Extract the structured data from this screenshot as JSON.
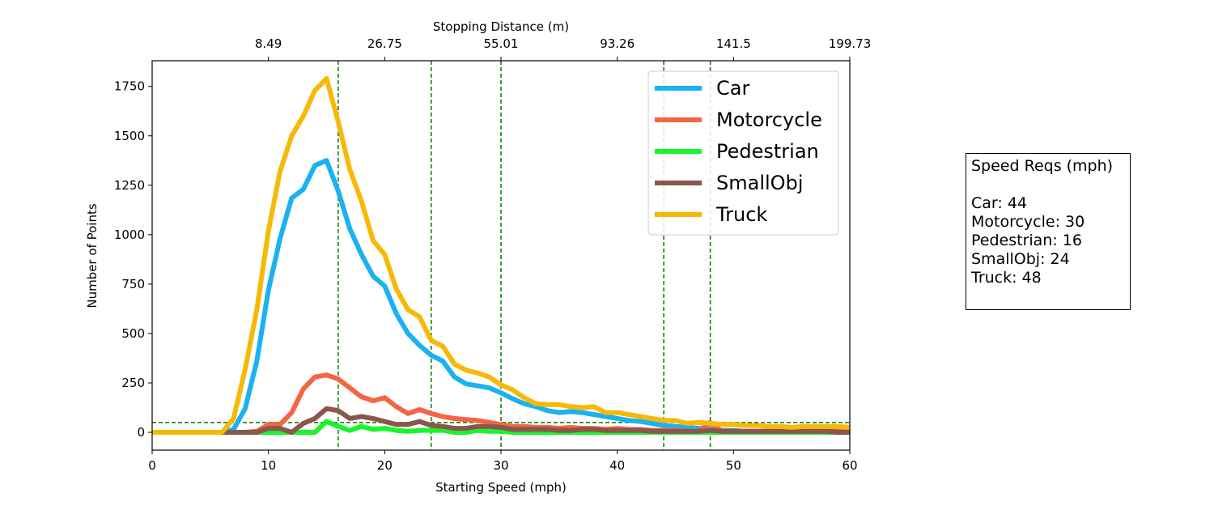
{
  "chart_data": {
    "type": "line",
    "xlabel": "Starting Speed (mph)",
    "ylabel": "Number of Points",
    "top_xlabel": "Stopping Distance (m)",
    "xlim": [
      0,
      60
    ],
    "ylim": [
      -90,
      1880
    ],
    "x_ticks": [
      0,
      10,
      20,
      30,
      40,
      50,
      60
    ],
    "y_ticks": [
      0,
      250,
      500,
      750,
      1000,
      1250,
      1500,
      1750
    ],
    "top_ticks": [
      {
        "x": 10,
        "label": "8.49"
      },
      {
        "x": 20,
        "label": "26.75"
      },
      {
        "x": 30,
        "label": "55.01"
      },
      {
        "x": 40,
        "label": "93.26"
      },
      {
        "x": 50,
        "label": "141.5"
      },
      {
        "x": 60,
        "label": "199.73"
      }
    ],
    "vlines": [
      16,
      24,
      30,
      44,
      48
    ],
    "hline": 50,
    "reference_color": "#007a00",
    "legend_position": "upper right",
    "x": [
      0,
      1,
      2,
      3,
      4,
      5,
      6,
      7,
      8,
      9,
      10,
      11,
      12,
      13,
      14,
      15,
      16,
      17,
      18,
      19,
      20,
      21,
      22,
      23,
      24,
      25,
      26,
      27,
      28,
      29,
      30,
      31,
      32,
      33,
      34,
      35,
      36,
      37,
      38,
      39,
      40,
      41,
      42,
      43,
      44,
      45,
      46,
      47,
      48,
      49,
      50,
      51,
      52,
      53,
      54,
      55,
      56,
      57,
      58,
      59,
      60
    ],
    "series": [
      {
        "name": "Car",
        "color": "#1ab2ef",
        "values": [
          0,
          0,
          0,
          0,
          0,
          0,
          0,
          15,
          120,
          360,
          720,
          980,
          1185,
          1230,
          1350,
          1375,
          1220,
          1030,
          900,
          790,
          740,
          600,
          500,
          440,
          390,
          360,
          280,
          245,
          235,
          225,
          200,
          170,
          145,
          130,
          110,
          100,
          105,
          100,
          90,
          80,
          70,
          60,
          55,
          45,
          35,
          30,
          25,
          20,
          15,
          10,
          10,
          5,
          5,
          5,
          5,
          5,
          5,
          5,
          5,
          5,
          5
        ]
      },
      {
        "name": "Motorcycle",
        "color": "#f46544",
        "values": [
          0,
          0,
          0,
          0,
          0,
          0,
          0,
          0,
          0,
          5,
          40,
          40,
          100,
          220,
          280,
          290,
          270,
          225,
          180,
          160,
          175,
          130,
          95,
          115,
          95,
          80,
          70,
          65,
          60,
          50,
          40,
          30,
          30,
          25,
          25,
          20,
          25,
          20,
          20,
          15,
          20,
          15,
          15,
          10,
          10,
          10,
          5,
          5,
          50,
          5,
          5,
          5,
          5,
          5,
          5,
          5,
          5,
          5,
          5,
          5,
          5
        ]
      },
      {
        "name": "Pedestrian",
        "color": "#18f52c",
        "values": [
          0,
          0,
          0,
          0,
          0,
          0,
          0,
          0,
          0,
          0,
          0,
          0,
          0,
          0,
          0,
          55,
          30,
          10,
          30,
          15,
          20,
          10,
          5,
          10,
          10,
          10,
          0,
          0,
          10,
          5,
          5,
          0,
          0,
          0,
          0,
          0,
          0,
          0,
          0,
          0,
          0,
          0,
          0,
          0,
          0,
          0,
          0,
          0,
          0,
          0,
          0,
          0,
          0,
          0,
          0,
          0,
          0,
          0,
          0,
          0,
          0
        ]
      },
      {
        "name": "SmallObj",
        "color": "#8b564b",
        "values": [
          0,
          0,
          0,
          0,
          0,
          0,
          0,
          0,
          0,
          0,
          20,
          20,
          0,
          45,
          70,
          120,
          110,
          70,
          80,
          70,
          55,
          40,
          40,
          55,
          35,
          30,
          20,
          20,
          30,
          30,
          25,
          15,
          15,
          15,
          15,
          10,
          10,
          15,
          15,
          10,
          10,
          10,
          10,
          5,
          5,
          5,
          5,
          5,
          10,
          5,
          5,
          5,
          5,
          5,
          5,
          5,
          5,
          5,
          5,
          0,
          0
        ]
      },
      {
        "name": "Truck",
        "color": "#f7b907",
        "values": [
          0,
          0,
          0,
          0,
          0,
          0,
          0,
          70,
          320,
          620,
          1020,
          1320,
          1500,
          1600,
          1730,
          1790,
          1570,
          1330,
          1170,
          970,
          900,
          725,
          620,
          585,
          465,
          435,
          345,
          315,
          300,
          280,
          240,
          215,
          175,
          145,
          140,
          140,
          130,
          125,
          130,
          100,
          100,
          90,
          80,
          70,
          60,
          60,
          45,
          50,
          45,
          40,
          40,
          35,
          35,
          30,
          30,
          25,
          30,
          30,
          30,
          30,
          25
        ]
      }
    ]
  },
  "info_box": {
    "title": "Speed Reqs (mph)",
    "lines": [
      "Car: 44",
      "Motorcycle: 30",
      "Pedestrian: 16",
      "SmallObj: 24",
      "Truck: 48"
    ]
  }
}
